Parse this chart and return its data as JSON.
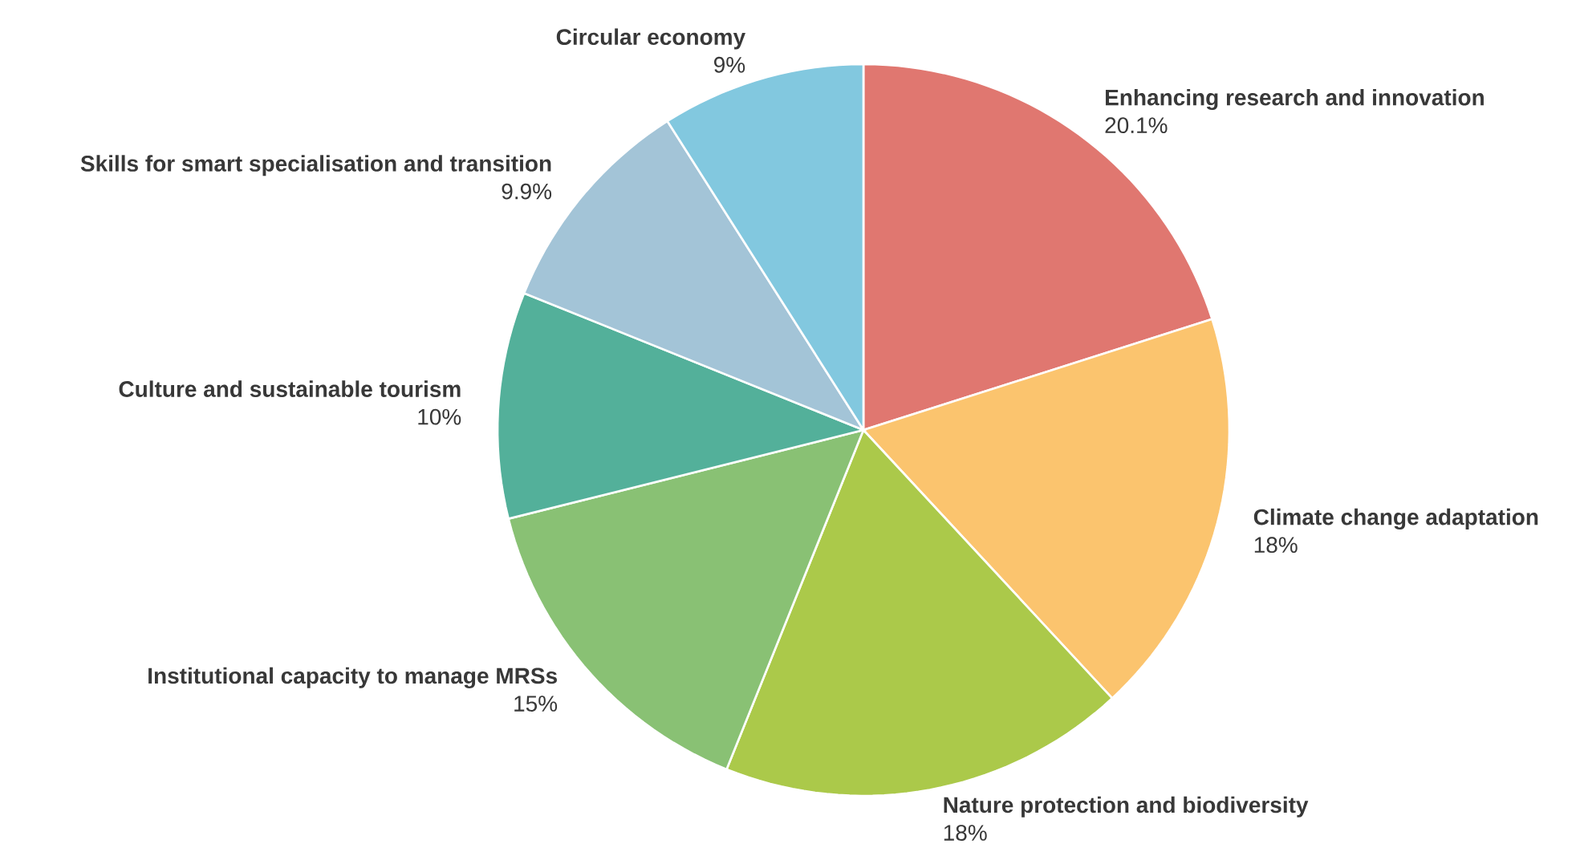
{
  "chart_data": {
    "type": "pie",
    "categories": [
      "Enhancing research and innovation",
      "Climate change adaptation",
      "Nature protection and biodiversity",
      "Institutional capacity to manage MRSs",
      "Culture and sustainable tourism",
      "Skills for smart specialisation and transition",
      "Circular economy"
    ],
    "values": [
      20.1,
      18,
      18,
      15,
      10,
      9.9,
      9
    ],
    "value_labels": [
      "20.1%",
      "18%",
      "18%",
      "15%",
      "10%",
      "9.9%",
      "9%"
    ],
    "colors": [
      "#e07770",
      "#fbc46e",
      "#abc94a",
      "#89c174",
      "#53b09a",
      "#a3c4d7",
      "#82c8df"
    ]
  }
}
